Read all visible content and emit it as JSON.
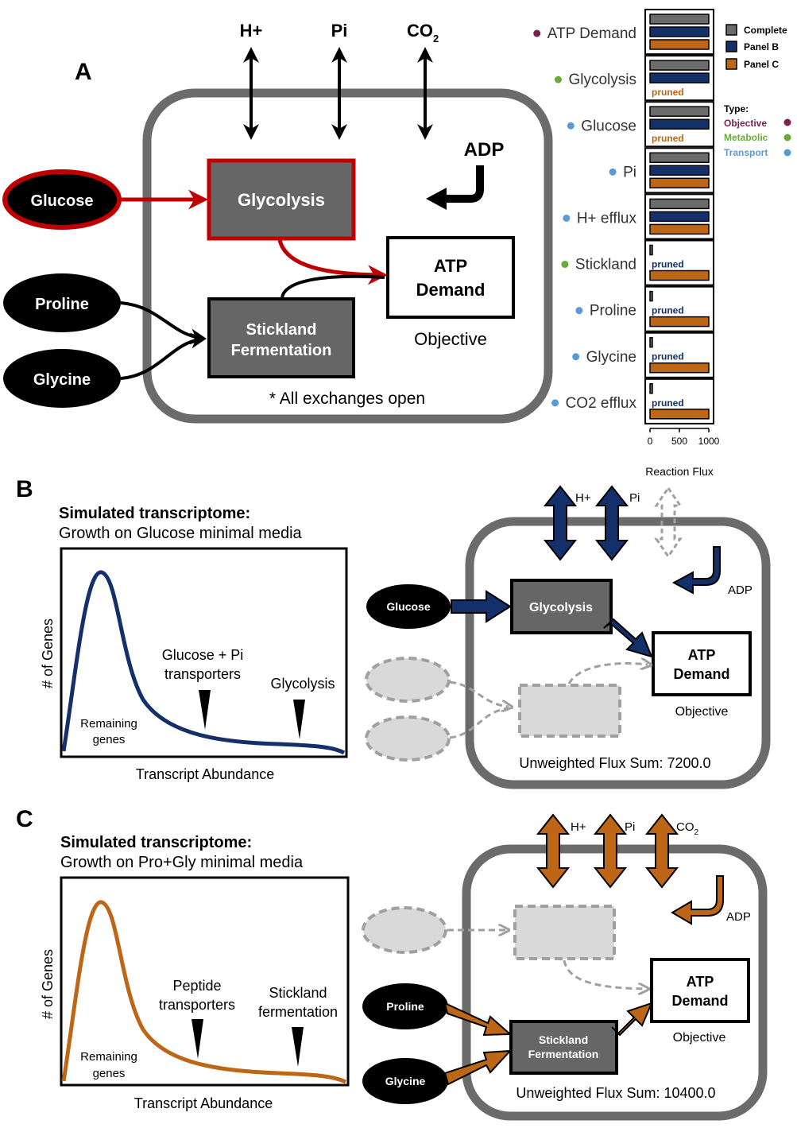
{
  "panel_a": {
    "letter": "A",
    "exchanges": [
      "H+",
      "Pi",
      "CO"
    ],
    "co2_sub": "2",
    "adp": "ADP",
    "glucose": "Glucose",
    "proline": "Proline",
    "glycine": "Glycine",
    "glycolysis": "Glycolysis",
    "stickland_1": "Stickland",
    "stickland_2": "Fermentation",
    "atp_1": "ATP",
    "atp_2": "Demand",
    "objective": "Objective",
    "note": "* All exchanges open",
    "colors": {
      "objective": "#c00000",
      "cell": "#6b6b6b",
      "node": "#000000",
      "box": "#666666"
    }
  },
  "flux_chart": {
    "legend": [
      "Complete",
      "Panel B",
      "Panel C"
    ],
    "type_title": "Type:",
    "types": [
      {
        "label": "Objective",
        "color": "#7a1f4e"
      },
      {
        "label": "Metabolic",
        "color": "#6aaa3c"
      },
      {
        "label": "Transport",
        "color": "#5b9bd5"
      }
    ],
    "pruned_label": "pruned",
    "colors": {
      "complete": "#6b6b6b",
      "panel_b": "#13306a",
      "panel_c": "#bd6716"
    }
  },
  "chart_data": {
    "type": "bar",
    "orientation": "horizontal",
    "xlabel": "Reaction Flux",
    "ticks": [
      "0",
      "500",
      "1000"
    ],
    "xlim": [
      0,
      1000
    ],
    "categories": [
      "ATP Demand",
      "Glycolysis",
      "Glucose",
      "Pi",
      "H+ efflux",
      "Stickland",
      "Proline",
      "Glycine",
      "CO2 efflux"
    ],
    "category_types": [
      "Objective",
      "Metabolic",
      "Transport",
      "Transport",
      "Transport",
      "Metabolic",
      "Transport",
      "Transport",
      "Transport"
    ],
    "series": [
      {
        "name": "Complete",
        "values": [
          1000,
          1000,
          1000,
          1000,
          1000,
          25,
          25,
          25,
          25
        ]
      },
      {
        "name": "Panel B",
        "values": [
          1000,
          1000,
          1000,
          1000,
          1000,
          null,
          null,
          null,
          null
        ]
      },
      {
        "name": "Panel C",
        "values": [
          1000,
          null,
          null,
          1000,
          1000,
          1000,
          1000,
          1000,
          1000
        ]
      }
    ]
  },
  "panel_b": {
    "letter": "B",
    "title": "Simulated transcriptome:",
    "subtitle": "Growth on Glucose minimal media",
    "ylabel": "# of Genes",
    "xlabel": "Transcript Abundance",
    "remaining_1": "Remaining",
    "remaining_2": "genes",
    "ann1_1": "Glucose + Pi",
    "ann1_2": "transporters",
    "ann2": "Glycolysis",
    "h": "H+",
    "pi": "Pi",
    "adp": "ADP",
    "glucose": "Glucose",
    "glycolysis": "Glycolysis",
    "atp_1": "ATP",
    "atp_2": "Demand",
    "objective": "Objective",
    "flux_sum": "Unweighted Flux Sum: 7200.0",
    "color": "#13306a"
  },
  "panel_c": {
    "letter": "C",
    "title": "Simulated transcriptome:",
    "subtitle": "Growth on Pro+Gly minimal media",
    "ylabel": "# of Genes",
    "xlabel": "Transcript Abundance",
    "remaining_1": "Remaining",
    "remaining_2": "genes",
    "ann1_1": "Peptide",
    "ann1_2": "transporters",
    "ann2_1": "Stickland",
    "ann2_2": "fermentation",
    "h": "H+",
    "pi": "Pi",
    "co": "CO",
    "co2_sub": "2",
    "adp": "ADP",
    "proline": "Proline",
    "glycine": "Glycine",
    "stickland_1": "Stickland",
    "stickland_2": "Fermentation",
    "atp_1": "ATP",
    "atp_2": "Demand",
    "objective": "Objective",
    "flux_sum": "Unweighted Flux Sum: 10400.0",
    "color": "#bd6716"
  }
}
